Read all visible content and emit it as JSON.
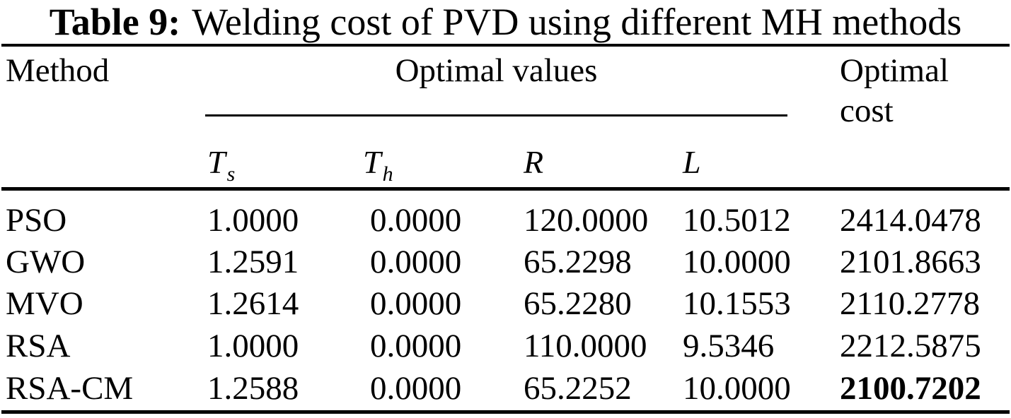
{
  "title": {
    "prefix": "Table 9:",
    "text": "Welding cost of PVD using different MH methods"
  },
  "table": {
    "columns": {
      "method": "Method",
      "group": "Optimal values",
      "cost_line1": "Optimal",
      "cost_line2": "cost"
    },
    "subcolumns": [
      {
        "symbol": "T",
        "subscript": "s"
      },
      {
        "symbol": "T",
        "subscript": "h"
      },
      {
        "symbol": "R",
        "subscript": ""
      },
      {
        "symbol": "L",
        "subscript": ""
      }
    ],
    "rows": [
      {
        "method": "PSO",
        "ts": "1.0000",
        "th": "0.0000",
        "r": "120.0000",
        "l": "10.5012",
        "cost": "2414.0478"
      },
      {
        "method": "GWO",
        "ts": "1.2591",
        "th": "0.0000",
        "r": "65.2298",
        "l": "10.0000",
        "cost": "2101.8663"
      },
      {
        "method": "MVO",
        "ts": "1.2614",
        "th": "0.0000",
        "r": "65.2280",
        "l": "10.1553",
        "cost": "2110.2778"
      },
      {
        "method": "RSA",
        "ts": "1.0000",
        "th": "0.0000",
        "r": "110.0000",
        "l": "9.5346",
        "cost": "2212.5875"
      },
      {
        "method": "RSA-CM",
        "ts": "1.2588",
        "th": "0.0000",
        "r": "65.2252",
        "l": "10.0000",
        "cost": "2100.7202"
      }
    ],
    "best_cost_row_index": 4
  },
  "colors": {
    "text": "#000000",
    "background": "#ffffff",
    "rule": "#000000"
  },
  "chart_data": {
    "type": "table",
    "title": "Table 9: Welding cost of PVD using different MH methods",
    "columns": [
      "Method",
      "Ts",
      "Th",
      "R",
      "L",
      "Optimal cost"
    ],
    "rows": [
      [
        "PSO",
        1.0,
        0.0,
        120.0,
        10.5012,
        2414.0478
      ],
      [
        "GWO",
        1.2591,
        0.0,
        65.2298,
        10.0,
        2101.8663
      ],
      [
        "MVO",
        1.2614,
        0.0,
        65.228,
        10.1553,
        2110.2778
      ],
      [
        "RSA",
        1.0,
        0.0,
        110.0,
        9.5346,
        2212.5875
      ],
      [
        "RSA-CM",
        1.2588,
        0.0,
        65.2252,
        10.0,
        2100.7202
      ]
    ],
    "notes": "Best (lowest) optimal cost 2100.7202 for RSA-CM shown in bold"
  }
}
